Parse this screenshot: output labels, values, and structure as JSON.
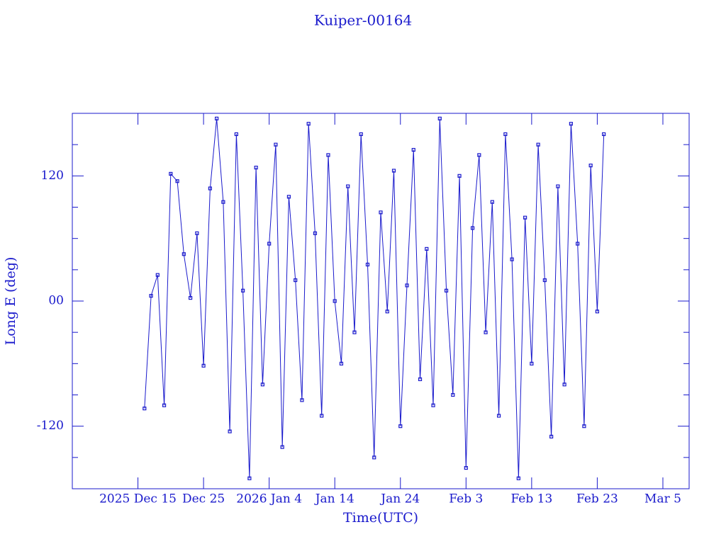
{
  "chart_data": {
    "type": "line",
    "title": "Kuiper-00164",
    "x_label": "Time(UTC)",
    "y_label": "Long E (deg)",
    "color": "#1a1acc",
    "markers": "square",
    "xlim": [
      "2025-12-05",
      "2026-03-09"
    ],
    "xticks": [
      {
        "value": "2025-12-15",
        "label": "2025 Dec 15"
      },
      {
        "value": "2025-12-25",
        "label": "Dec 25"
      },
      {
        "value": "2026-01-04",
        "label": "2026 Jan  4"
      },
      {
        "value": "2026-01-14",
        "label": "Jan 14"
      },
      {
        "value": "2026-01-24",
        "label": "Jan 24"
      },
      {
        "value": "2026-02-03",
        "label": "Feb  3"
      },
      {
        "value": "2026-02-13",
        "label": "Feb 13"
      },
      {
        "value": "2026-02-23",
        "label": "Feb 23"
      },
      {
        "value": "2026-03-05",
        "label": "Mar  5"
      }
    ],
    "ylim": [
      -180,
      180
    ],
    "yticks": [
      -120,
      {
        "value": 0,
        "label": "00"
      },
      120
    ],
    "yminorticks": [
      -150,
      -90,
      -60,
      -30,
      30,
      60,
      90,
      150
    ],
    "x": [
      "2025-12-16",
      "2025-12-17",
      "2025-12-18",
      "2025-12-19",
      "2025-12-20",
      "2025-12-21",
      "2025-12-22",
      "2025-12-23",
      "2025-12-24",
      "2025-12-25",
      "2025-12-26",
      "2025-12-27",
      "2025-12-28",
      "2025-12-29",
      "2025-12-30",
      "2025-12-31",
      "2026-01-01",
      "2026-01-02",
      "2026-01-03",
      "2026-01-04",
      "2026-01-05",
      "2026-01-06",
      "2026-01-07",
      "2026-01-08",
      "2026-01-09",
      "2026-01-10",
      "2026-01-11",
      "2026-01-12",
      "2026-01-13",
      "2026-01-14",
      "2026-01-15",
      "2026-01-16",
      "2026-01-17",
      "2026-01-18",
      "2026-01-19",
      "2026-01-20",
      "2026-01-21",
      "2026-01-22",
      "2026-01-23",
      "2026-01-24",
      "2026-01-25",
      "2026-01-26",
      "2026-01-27",
      "2026-01-28",
      "2026-01-29",
      "2026-01-30",
      "2026-01-31",
      "2026-02-01",
      "2026-02-02",
      "2026-02-03",
      "2026-02-04",
      "2026-02-05",
      "2026-02-06",
      "2026-02-07",
      "2026-02-08",
      "2026-02-09",
      "2026-02-10",
      "2026-02-11",
      "2026-02-12",
      "2026-02-13",
      "2026-02-14",
      "2026-02-15",
      "2026-02-16",
      "2026-02-17",
      "2026-02-18",
      "2026-02-19",
      "2026-02-20",
      "2026-02-21",
      "2026-02-22",
      "2026-02-23",
      "2026-02-24"
    ],
    "values": [
      -103,
      5,
      25,
      -100,
      122,
      115,
      45,
      3,
      65,
      -62,
      108,
      175,
      95,
      -125,
      160,
      10,
      -170,
      128,
      -80,
      55,
      150,
      -140,
      100,
      20,
      -95,
      170,
      65,
      -110,
      140,
      0,
      -60,
      110,
      -30,
      160,
      35,
      -150,
      85,
      -10,
      125,
      -120,
      15,
      145,
      -75,
      50,
      -100,
      175,
      10,
      -90,
      120,
      -160,
      70,
      140,
      -30,
      95,
      -110,
      160,
      40,
      -170,
      80,
      -60,
      150,
      20,
      -130,
      110,
      -80,
      170,
      55,
      -120,
      130,
      -10,
      160
    ]
  }
}
